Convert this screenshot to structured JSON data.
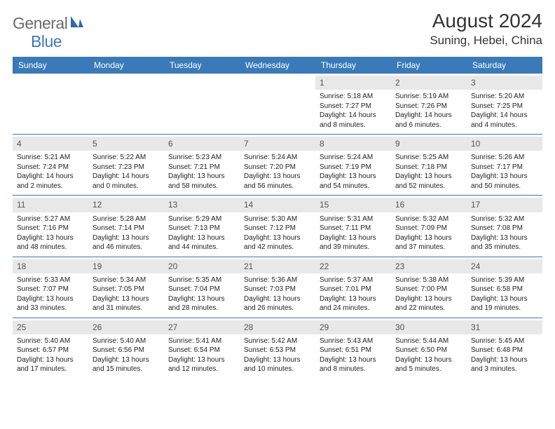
{
  "logo": {
    "general": "General",
    "blue": "Blue"
  },
  "title": "August 2024",
  "location": "Suning, Hebei, China",
  "weekday_labels": [
    "Sunday",
    "Monday",
    "Tuesday",
    "Wednesday",
    "Thursday",
    "Friday",
    "Saturday"
  ],
  "colors": {
    "header_bg": "#3a7ab8",
    "daynum_bg": "#e8e8e8",
    "text": "#333333",
    "logo_gray": "#6b6b6b",
    "logo_blue": "#3a7ab8",
    "border": "#3a7ab8"
  },
  "grid": {
    "rows": 5,
    "cols": 7,
    "blank_leading": 4
  },
  "days": [
    {
      "n": "1",
      "sunrise": "Sunrise: 5:18 AM",
      "sunset": "Sunset: 7:27 PM",
      "daylight": "Daylight: 14 hours and 8 minutes."
    },
    {
      "n": "2",
      "sunrise": "Sunrise: 5:19 AM",
      "sunset": "Sunset: 7:26 PM",
      "daylight": "Daylight: 14 hours and 6 minutes."
    },
    {
      "n": "3",
      "sunrise": "Sunrise: 5:20 AM",
      "sunset": "Sunset: 7:25 PM",
      "daylight": "Daylight: 14 hours and 4 minutes."
    },
    {
      "n": "4",
      "sunrise": "Sunrise: 5:21 AM",
      "sunset": "Sunset: 7:24 PM",
      "daylight": "Daylight: 14 hours and 2 minutes."
    },
    {
      "n": "5",
      "sunrise": "Sunrise: 5:22 AM",
      "sunset": "Sunset: 7:23 PM",
      "daylight": "Daylight: 14 hours and 0 minutes."
    },
    {
      "n": "6",
      "sunrise": "Sunrise: 5:23 AM",
      "sunset": "Sunset: 7:21 PM",
      "daylight": "Daylight: 13 hours and 58 minutes."
    },
    {
      "n": "7",
      "sunrise": "Sunrise: 5:24 AM",
      "sunset": "Sunset: 7:20 PM",
      "daylight": "Daylight: 13 hours and 56 minutes."
    },
    {
      "n": "8",
      "sunrise": "Sunrise: 5:24 AM",
      "sunset": "Sunset: 7:19 PM",
      "daylight": "Daylight: 13 hours and 54 minutes."
    },
    {
      "n": "9",
      "sunrise": "Sunrise: 5:25 AM",
      "sunset": "Sunset: 7:18 PM",
      "daylight": "Daylight: 13 hours and 52 minutes."
    },
    {
      "n": "10",
      "sunrise": "Sunrise: 5:26 AM",
      "sunset": "Sunset: 7:17 PM",
      "daylight": "Daylight: 13 hours and 50 minutes."
    },
    {
      "n": "11",
      "sunrise": "Sunrise: 5:27 AM",
      "sunset": "Sunset: 7:16 PM",
      "daylight": "Daylight: 13 hours and 48 minutes."
    },
    {
      "n": "12",
      "sunrise": "Sunrise: 5:28 AM",
      "sunset": "Sunset: 7:14 PM",
      "daylight": "Daylight: 13 hours and 46 minutes."
    },
    {
      "n": "13",
      "sunrise": "Sunrise: 5:29 AM",
      "sunset": "Sunset: 7:13 PM",
      "daylight": "Daylight: 13 hours and 44 minutes."
    },
    {
      "n": "14",
      "sunrise": "Sunrise: 5:30 AM",
      "sunset": "Sunset: 7:12 PM",
      "daylight": "Daylight: 13 hours and 42 minutes."
    },
    {
      "n": "15",
      "sunrise": "Sunrise: 5:31 AM",
      "sunset": "Sunset: 7:11 PM",
      "daylight": "Daylight: 13 hours and 39 minutes."
    },
    {
      "n": "16",
      "sunrise": "Sunrise: 5:32 AM",
      "sunset": "Sunset: 7:09 PM",
      "daylight": "Daylight: 13 hours and 37 minutes."
    },
    {
      "n": "17",
      "sunrise": "Sunrise: 5:32 AM",
      "sunset": "Sunset: 7:08 PM",
      "daylight": "Daylight: 13 hours and 35 minutes."
    },
    {
      "n": "18",
      "sunrise": "Sunrise: 5:33 AM",
      "sunset": "Sunset: 7:07 PM",
      "daylight": "Daylight: 13 hours and 33 minutes."
    },
    {
      "n": "19",
      "sunrise": "Sunrise: 5:34 AM",
      "sunset": "Sunset: 7:05 PM",
      "daylight": "Daylight: 13 hours and 31 minutes."
    },
    {
      "n": "20",
      "sunrise": "Sunrise: 5:35 AM",
      "sunset": "Sunset: 7:04 PM",
      "daylight": "Daylight: 13 hours and 28 minutes."
    },
    {
      "n": "21",
      "sunrise": "Sunrise: 5:36 AM",
      "sunset": "Sunset: 7:03 PM",
      "daylight": "Daylight: 13 hours and 26 minutes."
    },
    {
      "n": "22",
      "sunrise": "Sunrise: 5:37 AM",
      "sunset": "Sunset: 7:01 PM",
      "daylight": "Daylight: 13 hours and 24 minutes."
    },
    {
      "n": "23",
      "sunrise": "Sunrise: 5:38 AM",
      "sunset": "Sunset: 7:00 PM",
      "daylight": "Daylight: 13 hours and 22 minutes."
    },
    {
      "n": "24",
      "sunrise": "Sunrise: 5:39 AM",
      "sunset": "Sunset: 6:58 PM",
      "daylight": "Daylight: 13 hours and 19 minutes."
    },
    {
      "n": "25",
      "sunrise": "Sunrise: 5:40 AM",
      "sunset": "Sunset: 6:57 PM",
      "daylight": "Daylight: 13 hours and 17 minutes."
    },
    {
      "n": "26",
      "sunrise": "Sunrise: 5:40 AM",
      "sunset": "Sunset: 6:56 PM",
      "daylight": "Daylight: 13 hours and 15 minutes."
    },
    {
      "n": "27",
      "sunrise": "Sunrise: 5:41 AM",
      "sunset": "Sunset: 6:54 PM",
      "daylight": "Daylight: 13 hours and 12 minutes."
    },
    {
      "n": "28",
      "sunrise": "Sunrise: 5:42 AM",
      "sunset": "Sunset: 6:53 PM",
      "daylight": "Daylight: 13 hours and 10 minutes."
    },
    {
      "n": "29",
      "sunrise": "Sunrise: 5:43 AM",
      "sunset": "Sunset: 6:51 PM",
      "daylight": "Daylight: 13 hours and 8 minutes."
    },
    {
      "n": "30",
      "sunrise": "Sunrise: 5:44 AM",
      "sunset": "Sunset: 6:50 PM",
      "daylight": "Daylight: 13 hours and 5 minutes."
    },
    {
      "n": "31",
      "sunrise": "Sunrise: 5:45 AM",
      "sunset": "Sunset: 6:48 PM",
      "daylight": "Daylight: 13 hours and 3 minutes."
    }
  ]
}
